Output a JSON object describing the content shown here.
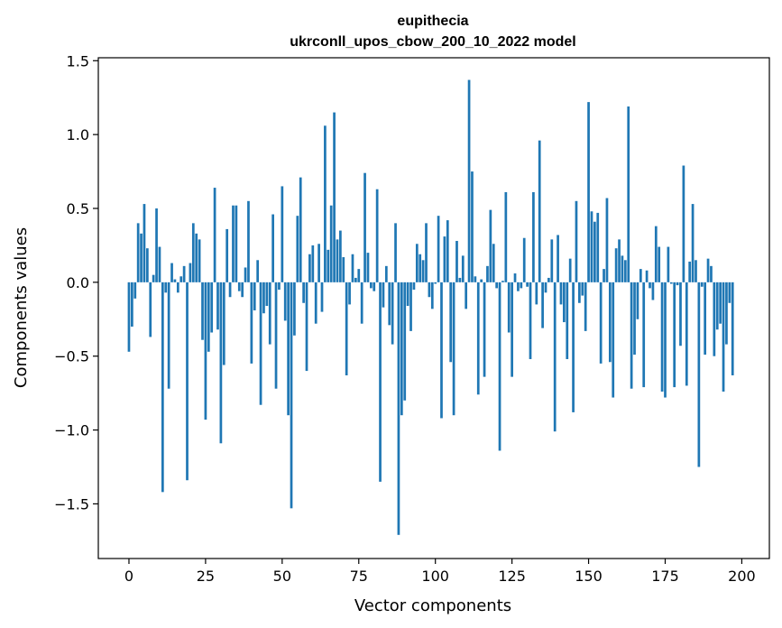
{
  "chart_data": {
    "type": "bar",
    "title": "eupithecia",
    "subtitle": "ukrconll_upos_cbow_200_10_2022 model",
    "xlabel": "Vector components",
    "ylabel": "Components values",
    "xlim": [
      -10,
      209
    ],
    "ylim": [
      -1.87,
      1.52
    ],
    "xticks": [
      0,
      25,
      50,
      75,
      100,
      125,
      150,
      175,
      200
    ],
    "xtick_labels": [
      "0",
      "25",
      "50",
      "75",
      "100",
      "125",
      "150",
      "175",
      "200"
    ],
    "yticks": [
      -1.5,
      -1.0,
      -0.5,
      0.0,
      0.5,
      1.0,
      1.5
    ],
    "ytick_labels": [
      "−1.5",
      "−1.0",
      "−0.5",
      "0.0",
      "0.5",
      "1.0",
      "1.5"
    ],
    "bar_color": "#1f77b4",
    "grid": false,
    "legend": "none",
    "values": [
      -0.47,
      -0.3,
      -0.11,
      0.4,
      0.33,
      0.53,
      0.23,
      -0.37,
      0.05,
      0.5,
      0.24,
      -1.42,
      -0.07,
      -0.72,
      0.13,
      0.02,
      -0.07,
      0.04,
      0.11,
      -1.34,
      0.13,
      0.4,
      0.33,
      0.29,
      -0.39,
      -0.93,
      -0.47,
      -0.34,
      0.64,
      -0.32,
      -1.09,
      -0.56,
      0.36,
      -0.1,
      0.52,
      0.52,
      -0.06,
      -0.1,
      0.1,
      0.55,
      -0.55,
      -0.19,
      0.15,
      -0.83,
      -0.21,
      -0.16,
      -0.42,
      0.46,
      -0.72,
      -0.05,
      0.65,
      -0.26,
      -0.9,
      -1.53,
      -0.36,
      0.45,
      0.71,
      -0.14,
      -0.6,
      0.19,
      0.25,
      -0.28,
      0.26,
      -0.2,
      1.06,
      0.22,
      0.52,
      1.15,
      0.29,
      0.35,
      0.17,
      -0.63,
      -0.15,
      0.19,
      0.03,
      0.09,
      -0.28,
      0.74,
      0.2,
      -0.04,
      -0.06,
      0.63,
      -1.35,
      -0.17,
      0.11,
      -0.29,
      -0.42,
      0.4,
      -1.71,
      -0.9,
      -0.8,
      -0.16,
      -0.33,
      -0.05,
      0.26,
      0.19,
      0.15,
      0.4,
      -0.1,
      -0.18,
      -0.01,
      0.45,
      -0.92,
      0.31,
      0.42,
      -0.54,
      -0.9,
      0.28,
      0.03,
      0.18,
      -0.18,
      1.37,
      0.75,
      0.04,
      -0.76,
      0.02,
      -0.64,
      0.11,
      0.49,
      0.26,
      -0.04,
      -1.14,
      0.01,
      0.61,
      -0.34,
      -0.64,
      0.06,
      -0.06,
      -0.04,
      0.3,
      -0.03,
      -0.52,
      0.61,
      -0.15,
      0.96,
      -0.31,
      -0.07,
      0.03,
      0.29,
      -1.01,
      0.32,
      -0.15,
      -0.27,
      -0.52,
      0.16,
      -0.88,
      0.55,
      -0.14,
      -0.09,
      -0.33,
      1.22,
      0.48,
      0.41,
      0.47,
      -0.55,
      0.09,
      0.57,
      -0.54,
      -0.78,
      0.23,
      0.29,
      0.18,
      0.15,
      1.19,
      -0.72,
      -0.49,
      -0.25,
      0.09,
      -0.71,
      0.08,
      -0.04,
      -0.12,
      0.38,
      0.24,
      -0.74,
      -0.78,
      0.24,
      -0.01,
      -0.71,
      -0.02,
      -0.43,
      0.79,
      -0.7,
      0.14,
      0.53,
      0.15,
      -1.25,
      -0.03,
      -0.49,
      0.16,
      0.11,
      -0.5,
      -0.32,
      -0.28,
      -0.74,
      -0.42,
      -0.14,
      -0.63
    ]
  }
}
